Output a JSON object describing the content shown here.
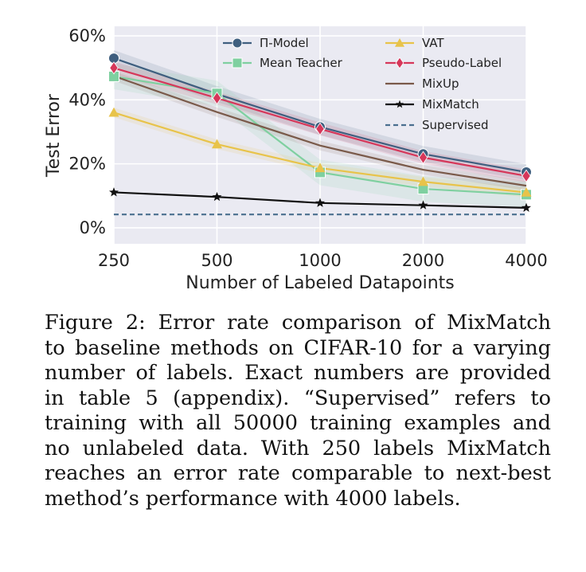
{
  "chart_data": {
    "type": "line",
    "xlabel": "Number of Labeled Datapoints",
    "ylabel": "Test Error",
    "categories": [
      "250",
      "500",
      "1000",
      "2000",
      "4000"
    ],
    "yticks": [
      "0%",
      "20%",
      "40%",
      "60%"
    ],
    "ylim": [
      -5,
      63
    ],
    "grid": true,
    "legend_position": "top",
    "series": [
      {
        "name": "Π-Model",
        "values": [
          53.02,
          41.82,
          31.53,
          23.07,
          17.41
        ],
        "color": "#3f5f7f",
        "marker": "circle"
      },
      {
        "name": "Mean Teacher",
        "values": [
          47.32,
          42.01,
          17.32,
          12.17,
          10.36
        ],
        "color": "#7fd0a0",
        "marker": "square"
      },
      {
        "name": "VAT",
        "values": [
          36.03,
          26.11,
          18.68,
          14.4,
          11.05
        ],
        "color": "#e8c34a",
        "marker": "triangle"
      },
      {
        "name": "Pseudo-Label",
        "values": [
          49.98,
          40.55,
          30.91,
          21.96,
          16.21
        ],
        "color": "#d6375a",
        "marker": "diamond"
      },
      {
        "name": "MixUp",
        "values": [
          47.43,
          36.17,
          25.72,
          18.14,
          13.15
        ],
        "color": "#7a5a4a",
        "marker": "none"
      },
      {
        "name": "MixMatch",
        "values": [
          11.08,
          9.65,
          7.75,
          7.03,
          6.24
        ],
        "color": "#111111",
        "marker": "star"
      },
      {
        "name": "Supervised",
        "values": [
          4.17,
          4.17,
          4.17,
          4.17,
          4.17
        ],
        "color": "#4a6f8f",
        "marker": "none",
        "dashed": true
      }
    ]
  },
  "caption": {
    "lines": [
      "Figure 2: Error rate comparison of MixMatch",
      "to baseline methods on CIFAR-10 for a varying",
      "number of labels. Exact numbers are provided",
      "in table 5 (appendix). “Supervised” refers to",
      "training with all 50000 training examples and",
      "no unlabeled data. With 250 labels MixMatch",
      "reaches an error rate comparable to next-best",
      "method’s performance with 4000 labels."
    ]
  }
}
